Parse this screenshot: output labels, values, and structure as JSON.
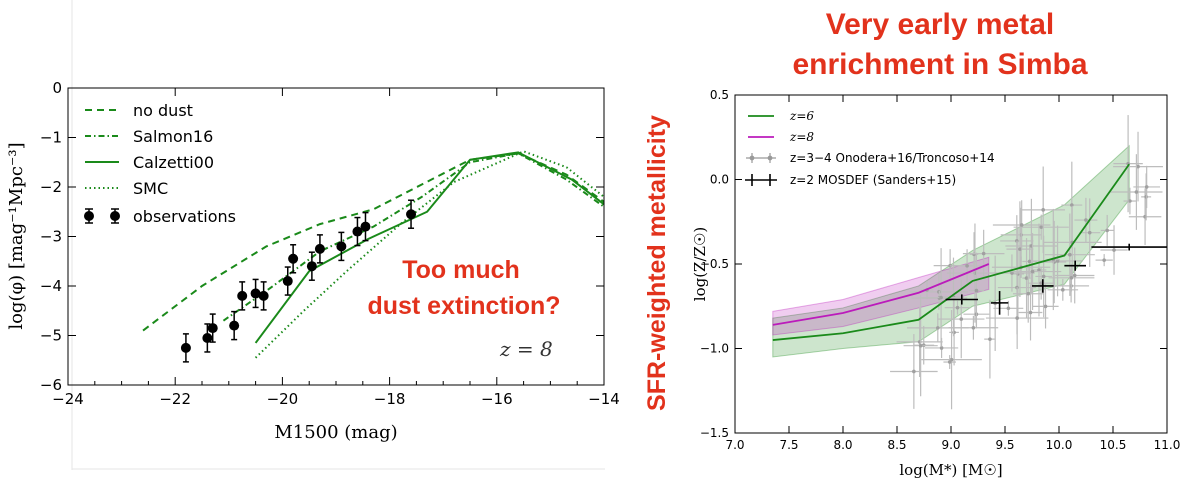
{
  "left": {
    "redshift_label": "z = 8",
    "annotation_line1": "Too much",
    "annotation_line2": "dust extinction?",
    "xlabel": "M1500 (mag)",
    "ylabel": "log(φ) [mag⁻¹Mpc⁻³]"
  },
  "right": {
    "title_line1": "Very early metal",
    "title_line2": "enrichment in Simba",
    "side_title": "SFR-weighted metallicity",
    "xlabel": "log(M*) [M☉]",
    "ylabel": "log(Z/Z☉)"
  },
  "colors": {
    "accent_red": "#e2321c",
    "green": "#1a8a1a",
    "magenta": "#bb1bbb",
    "gray": "#888888"
  },
  "chart_data": [
    {
      "type": "line",
      "xlim": [
        -24,
        -14
      ],
      "ylim": [
        -6,
        0
      ],
      "xticks": [
        "−24",
        "−22",
        "−20",
        "−18",
        "−16",
        "−14"
      ],
      "yticks": [
        "0",
        "−1",
        "−2",
        "−3",
        "−4",
        "−5",
        "−6"
      ],
      "legend_position": "upper-left",
      "series": [
        {
          "name": "no dust",
          "style": "dashed",
          "x": [
            -22.6,
            -21.5,
            -20.3,
            -19.3,
            -18.3,
            -17.4,
            -16.5,
            -15.6,
            -14.7,
            -14
          ],
          "y": [
            -4.9,
            -4.0,
            -3.2,
            -2.75,
            -2.45,
            -1.95,
            -1.45,
            -1.32,
            -1.75,
            -2.3
          ]
        },
        {
          "name": "Salmon16",
          "style": "dashdot",
          "x": [
            -21.1,
            -20.3,
            -19.3,
            -18.3,
            -17.4,
            -16.5,
            -15.6,
            -14.7,
            -14
          ],
          "y": [
            -4.7,
            -4.1,
            -3.3,
            -2.8,
            -2.2,
            -1.5,
            -1.32,
            -1.85,
            -2.4
          ]
        },
        {
          "name": "Calzetti00",
          "style": "solid",
          "x": [
            -20.5,
            -19.5,
            -18.4,
            -17.3,
            -16.5,
            -15.6,
            -14.6,
            -14
          ],
          "y": [
            -5.15,
            -3.7,
            -3.05,
            -2.5,
            -1.45,
            -1.3,
            -1.85,
            -2.35
          ]
        },
        {
          "name": "SMC",
          "style": "dotted",
          "x": [
            -20.5,
            -19.6,
            -18.8,
            -17.8,
            -16.8,
            -15.5,
            -14.7,
            -14
          ],
          "y": [
            -5.45,
            -4.5,
            -3.7,
            -2.75,
            -1.9,
            -1.28,
            -1.6,
            -2.2
          ]
        },
        {
          "name": "observations",
          "style": "errorbar",
          "x": [
            -21.8,
            -21.4,
            -21.3,
            -20.9,
            -20.75,
            -20.5,
            -20.35,
            -19.9,
            -19.8,
            -19.45,
            -19.3,
            -18.9,
            -18.6,
            -18.45,
            -17.6
          ],
          "y": [
            -5.25,
            -5.05,
            -4.85,
            -4.8,
            -4.2,
            -4.15,
            -4.2,
            -3.9,
            -3.45,
            -3.6,
            -3.25,
            -3.2,
            -2.9,
            -2.8,
            -2.55
          ]
        }
      ]
    },
    {
      "type": "line",
      "xlim": [
        7.0,
        11.0
      ],
      "ylim": [
        -1.5,
        0.5
      ],
      "xticks": [
        "7.0",
        "7.5",
        "8.0",
        "8.5",
        "9.0",
        "9.5",
        "10.0",
        "10.5",
        "11.0"
      ],
      "yticks": [
        "0.5",
        "0.0",
        "−0.5",
        "−1.0",
        "−1.5"
      ],
      "legend_position": "upper-left",
      "series": [
        {
          "name": "z=6",
          "style": "solid",
          "x": [
            7.35,
            8.0,
            8.7,
            9.2,
            10.05,
            10.65
          ],
          "y": [
            -0.95,
            -0.91,
            -0.83,
            -0.6,
            -0.45,
            0.09
          ],
          "band_lo": [
            -1.05,
            -1.0,
            -0.96,
            -0.75,
            -0.62,
            -0.12
          ],
          "band_hi": [
            -0.82,
            -0.76,
            -0.63,
            -0.42,
            -0.15,
            0.2
          ]
        },
        {
          "name": "z=8",
          "style": "solid",
          "x": [
            7.35,
            8.0,
            8.7,
            9.35
          ],
          "y": [
            -0.86,
            -0.79,
            -0.67,
            -0.5
          ],
          "band_lo": [
            -0.92,
            -0.87,
            -0.76,
            -0.65
          ],
          "band_hi": [
            -0.78,
            -0.71,
            -0.58,
            -0.46
          ]
        },
        {
          "name": "z=3−4 Onodera+16/Troncoso+14",
          "style": "errorbar"
        },
        {
          "name": "z=2 MOSDEF (Sanders+15)",
          "style": "errorbar",
          "x": [
            9.1,
            9.45,
            9.85,
            10.15,
            10.65
          ],
          "y": [
            -0.71,
            -0.73,
            -0.63,
            -0.51,
            -0.4
          ],
          "xerr": [
            0.15,
            0.08,
            0.1,
            0.1,
            0.35
          ],
          "yerr": [
            0.03,
            0.07,
            0.04,
            0.03,
            0.02
          ]
        }
      ]
    }
  ]
}
